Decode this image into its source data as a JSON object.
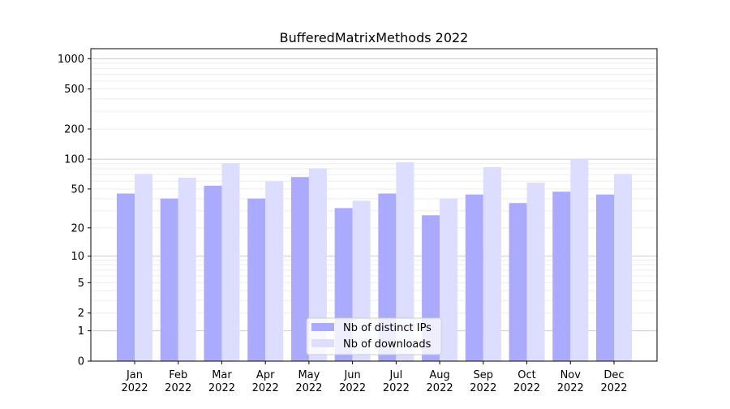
{
  "chart_data": {
    "type": "bar",
    "title": "BufferedMatrixMethods 2022",
    "xlabel": "",
    "ylabel": "",
    "yscale": "symlog (log10(1+y))",
    "ylim": [
      0,
      1300
    ],
    "yticks": [
      0,
      1,
      2,
      5,
      10,
      20,
      50,
      100,
      200,
      500,
      1000
    ],
    "grid": true,
    "legend_placement": "lower-center",
    "categories": [
      "Jan\n2022",
      "Feb\n2022",
      "Mar\n2022",
      "Apr\n2022",
      "May\n2022",
      "Jun\n2022",
      "Jul\n2022",
      "Aug\n2022",
      "Sep\n2022",
      "Oct\n2022",
      "Nov\n2022",
      "Dec\n2022"
    ],
    "series": [
      {
        "name": "Nb of distinct IPs",
        "color": "#aaaaff",
        "values": [
          45,
          40,
          54,
          40,
          66,
          32,
          45,
          27,
          44,
          36,
          47,
          44
        ]
      },
      {
        "name": "Nb of downloads",
        "color": "#ddddff",
        "values": [
          71,
          65,
          91,
          60,
          81,
          38,
          93,
          40,
          83,
          58,
          100,
          71
        ]
      }
    ]
  }
}
